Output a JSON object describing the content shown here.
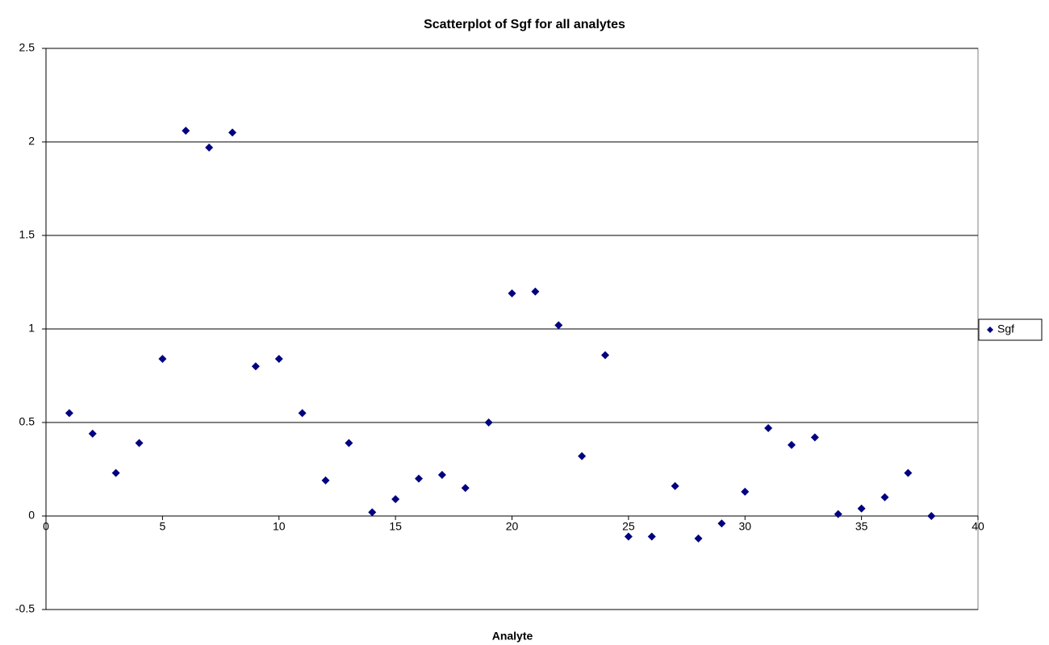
{
  "chart_data": {
    "type": "scatter",
    "title": "Scatterplot of Sgf for all analytes",
    "x_label": "Analyte",
    "series": [
      {
        "name": "Sgf",
        "color": "#000080",
        "x": [
          1,
          2,
          3,
          4,
          5,
          6,
          7,
          8,
          9,
          10,
          11,
          12,
          13,
          14,
          15,
          16,
          17,
          18,
          19,
          20,
          21,
          22,
          23,
          24,
          25,
          26,
          27,
          28,
          29,
          30,
          31,
          32,
          33,
          34,
          35,
          36,
          37,
          38
        ],
        "values": [
          0.55,
          0.44,
          0.23,
          0.39,
          0.84,
          2.06,
          1.97,
          2.05,
          0.8,
          0.84,
          0.55,
          0.19,
          0.39,
          0.02,
          0.09,
          0.2,
          0.22,
          0.15,
          0.5,
          1.19,
          1.2,
          1.02,
          0.32,
          0.86,
          -0.11,
          -0.11,
          0.16,
          -0.12,
          -0.04,
          0.13,
          0.47,
          0.38,
          0.42,
          0.01,
          0.04,
          0.1,
          0.23,
          0.0
        ]
      }
    ],
    "xlim": [
      0,
      40
    ],
    "xticks": [
      0,
      5,
      10,
      15,
      20,
      25,
      30,
      35,
      40
    ],
    "ylim": [
      -0.5,
      2.5
    ],
    "yticks": [
      -0.5,
      0,
      0.5,
      1,
      1.5,
      2,
      2.5
    ],
    "grid": true,
    "legend": "right"
  }
}
